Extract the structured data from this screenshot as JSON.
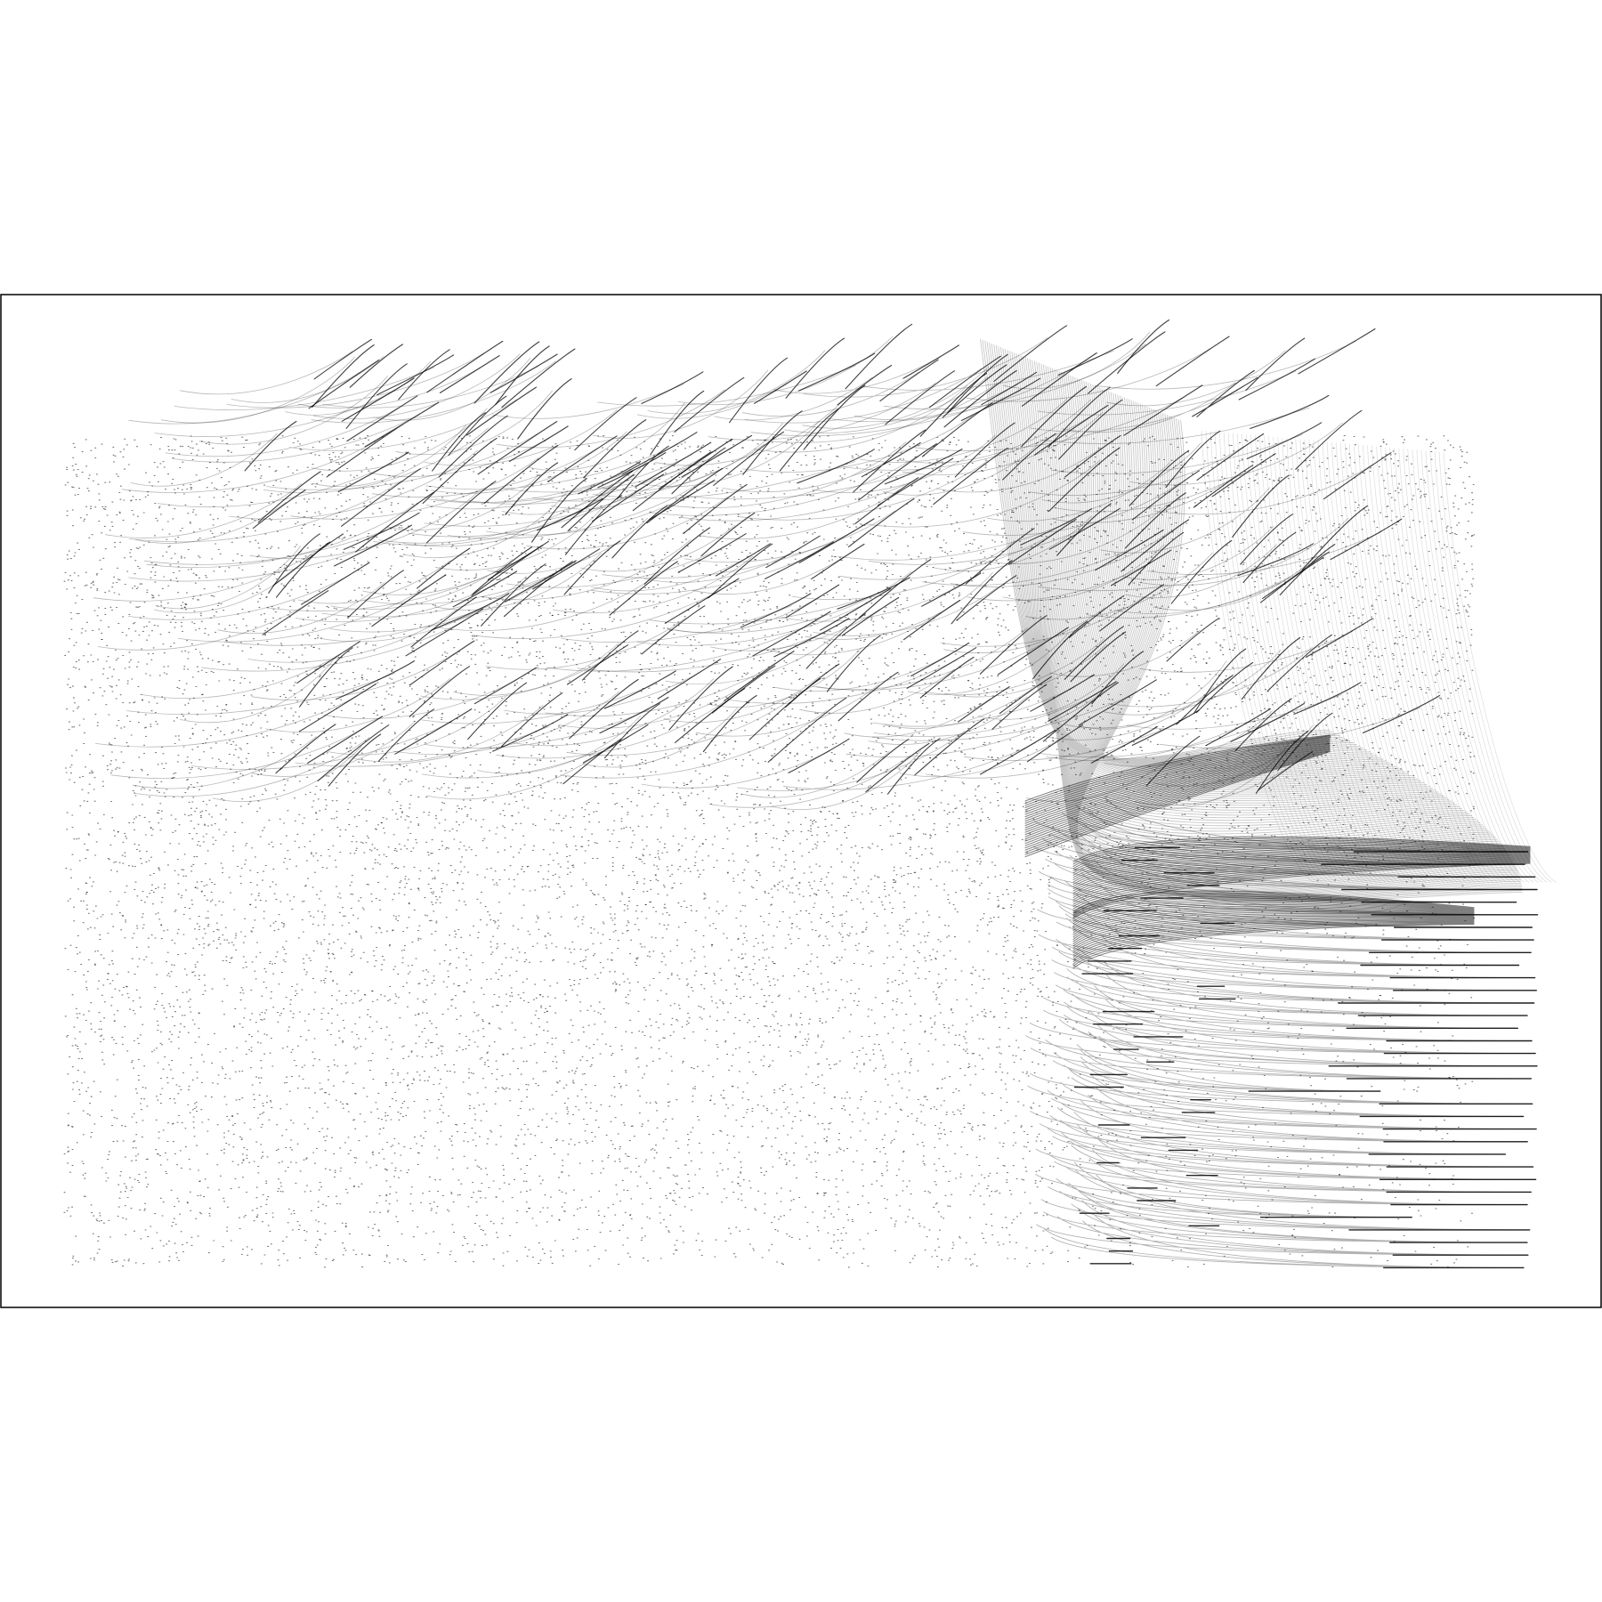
{
  "chart_data": {
    "type": "scatter",
    "title": "",
    "xlabel": "",
    "ylabel": "",
    "axes_frame": true,
    "ticks": false,
    "grid": false,
    "legend": "none",
    "xlim": [
      0,
      1
    ],
    "ylim": [
      0,
      1
    ],
    "point_color": "#000000",
    "series": [
      {
        "name": "",
        "kind": "hooked-trajectories",
        "description_values": {
          "x_start_range": [
            0.05,
            0.73
          ],
          "y_start_range": [
            0.5,
            0.96
          ],
          "count": 260
        }
      },
      {
        "name": "",
        "kind": "dense-band-feature",
        "description_values": {
          "x_range": [
            0.62,
            0.96
          ],
          "y_range": [
            0.45,
            0.96
          ]
        }
      },
      {
        "name": "",
        "kind": "diffuse-cloud",
        "description_values": {
          "x_range": [
            0.04,
            0.92
          ],
          "y_range": [
            0.04,
            0.86
          ],
          "count": 14000
        }
      },
      {
        "name": "",
        "kind": "right-flat-trajectories",
        "description_values": {
          "x_start_range": [
            0.64,
            0.96
          ],
          "y_start_range": [
            0.04,
            0.45
          ],
          "count": 34
        }
      }
    ]
  }
}
